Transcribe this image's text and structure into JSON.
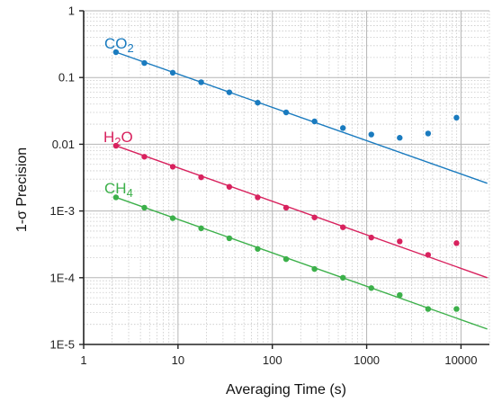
{
  "chart_data": {
    "type": "scatter",
    "xlabel": "Averaging Time (s)",
    "ylabel": "1-σ Precision",
    "xscale": "log",
    "yscale": "log",
    "xlim": [
      1,
      20000
    ],
    "ylim": [
      1e-05,
      1
    ],
    "grid": "major and minor (dotted minor)",
    "x_tick_labels": [
      "1",
      "10",
      "100",
      "1000",
      "10000"
    ],
    "y_tick_labels": [
      "1E-5",
      "1E-4",
      "1E-3",
      "0.01",
      "0.1",
      "1"
    ],
    "x": [
      2.2,
      4.4,
      8.8,
      17.6,
      35,
      70,
      140,
      280,
      560,
      1120,
      2240,
      4480,
      8960
    ],
    "series": [
      {
        "name": "CO2",
        "label_main": "CO",
        "label_sub": "2",
        "color": "#1a7bbf",
        "values": [
          0.24,
          0.165,
          0.118,
          0.085,
          0.06,
          0.042,
          0.03,
          0.022,
          0.0175,
          0.014,
          0.0125,
          0.0145,
          0.025
        ],
        "fit_line": {
          "x": [
            2.2,
            19000
          ],
          "y": [
            0.24,
            0.0026
          ]
        }
      },
      {
        "name": "H2O",
        "label_main": "H",
        "label_sub": "2",
        "label_tail": "O",
        "color": "#d8225e",
        "values": [
          0.0095,
          0.0065,
          0.0046,
          0.0032,
          0.0023,
          0.0016,
          0.00112,
          0.0008,
          0.00057,
          0.0004,
          0.00035,
          0.00022,
          0.00033
        ],
        "fit_line": {
          "x": [
            2.2,
            19000
          ],
          "y": [
            0.0095,
            0.0001
          ]
        }
      },
      {
        "name": "CH4",
        "label_main": "CH",
        "label_sub": "4",
        "color": "#3cb04a",
        "values": [
          0.0016,
          0.00112,
          0.00078,
          0.00055,
          0.00039,
          0.00027,
          0.00019,
          0.000135,
          0.0001,
          7e-05,
          5.5e-05,
          3.4e-05,
          3.4e-05
        ],
        "fit_line": {
          "x": [
            2.2,
            19000
          ],
          "y": [
            0.0016,
            1.7e-05
          ]
        }
      }
    ]
  }
}
